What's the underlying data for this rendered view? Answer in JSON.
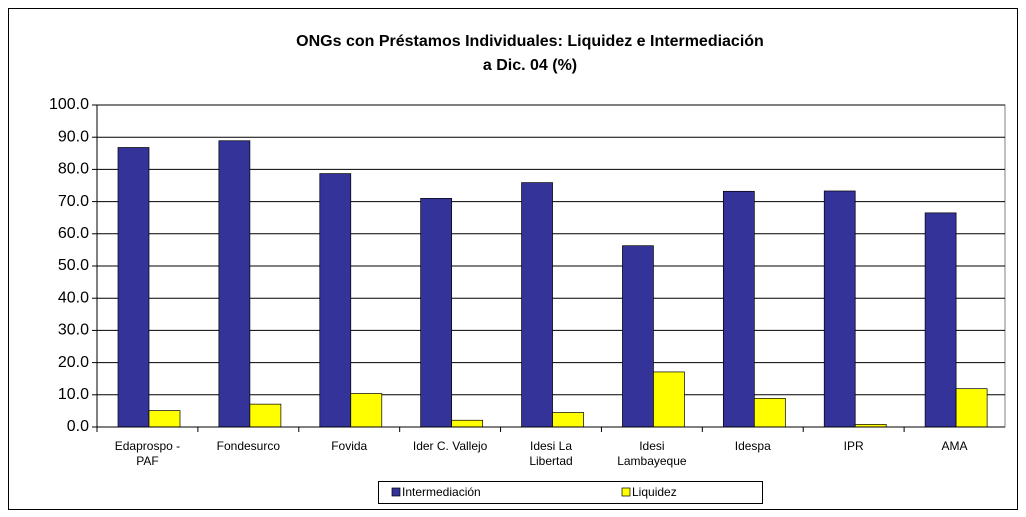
{
  "chart_data": {
    "type": "bar",
    "title": [
      "ONGs con Préstamos Individuales: Liquidez e Intermediación",
      "a Dic. 04 (%)"
    ],
    "categories": [
      [
        "Edaprospo -",
        "PAF"
      ],
      [
        "Fondesurco"
      ],
      [
        "Fovida"
      ],
      [
        "Ider C. Vallejo"
      ],
      [
        "Idesi La",
        "Libertad"
      ],
      [
        "Idesi",
        "Lambayeque"
      ],
      [
        "Idespa"
      ],
      [
        "IPR"
      ],
      [
        "AMA"
      ]
    ],
    "series": [
      {
        "name": "Intermediación",
        "color": "#333399",
        "values": [
          86.8,
          88.9,
          78.7,
          71.0,
          75.9,
          56.3,
          73.2,
          73.3,
          66.5
        ]
      },
      {
        "name": "Liquidez",
        "color": "#ffff00",
        "values": [
          5.1,
          7.1,
          10.4,
          2.1,
          4.5,
          17.1,
          8.9,
          0.8,
          11.9
        ]
      }
    ],
    "ylim": [
      0,
      100
    ],
    "yticks": [
      {
        "value": 0,
        "label": "0.0"
      },
      {
        "value": 10,
        "label": "10.0"
      },
      {
        "value": 20,
        "label": "20.0"
      },
      {
        "value": 30,
        "label": "30.0"
      },
      {
        "value": 40,
        "label": "40.0"
      },
      {
        "value": 50,
        "label": "50.0"
      },
      {
        "value": 60,
        "label": "60.0"
      },
      {
        "value": 70,
        "label": "70.0"
      },
      {
        "value": 80,
        "label": "80.0"
      },
      {
        "value": 90,
        "label": "90.0"
      },
      {
        "value": 100,
        "label": "100.0"
      }
    ],
    "grid": true,
    "legend": "bottom"
  }
}
